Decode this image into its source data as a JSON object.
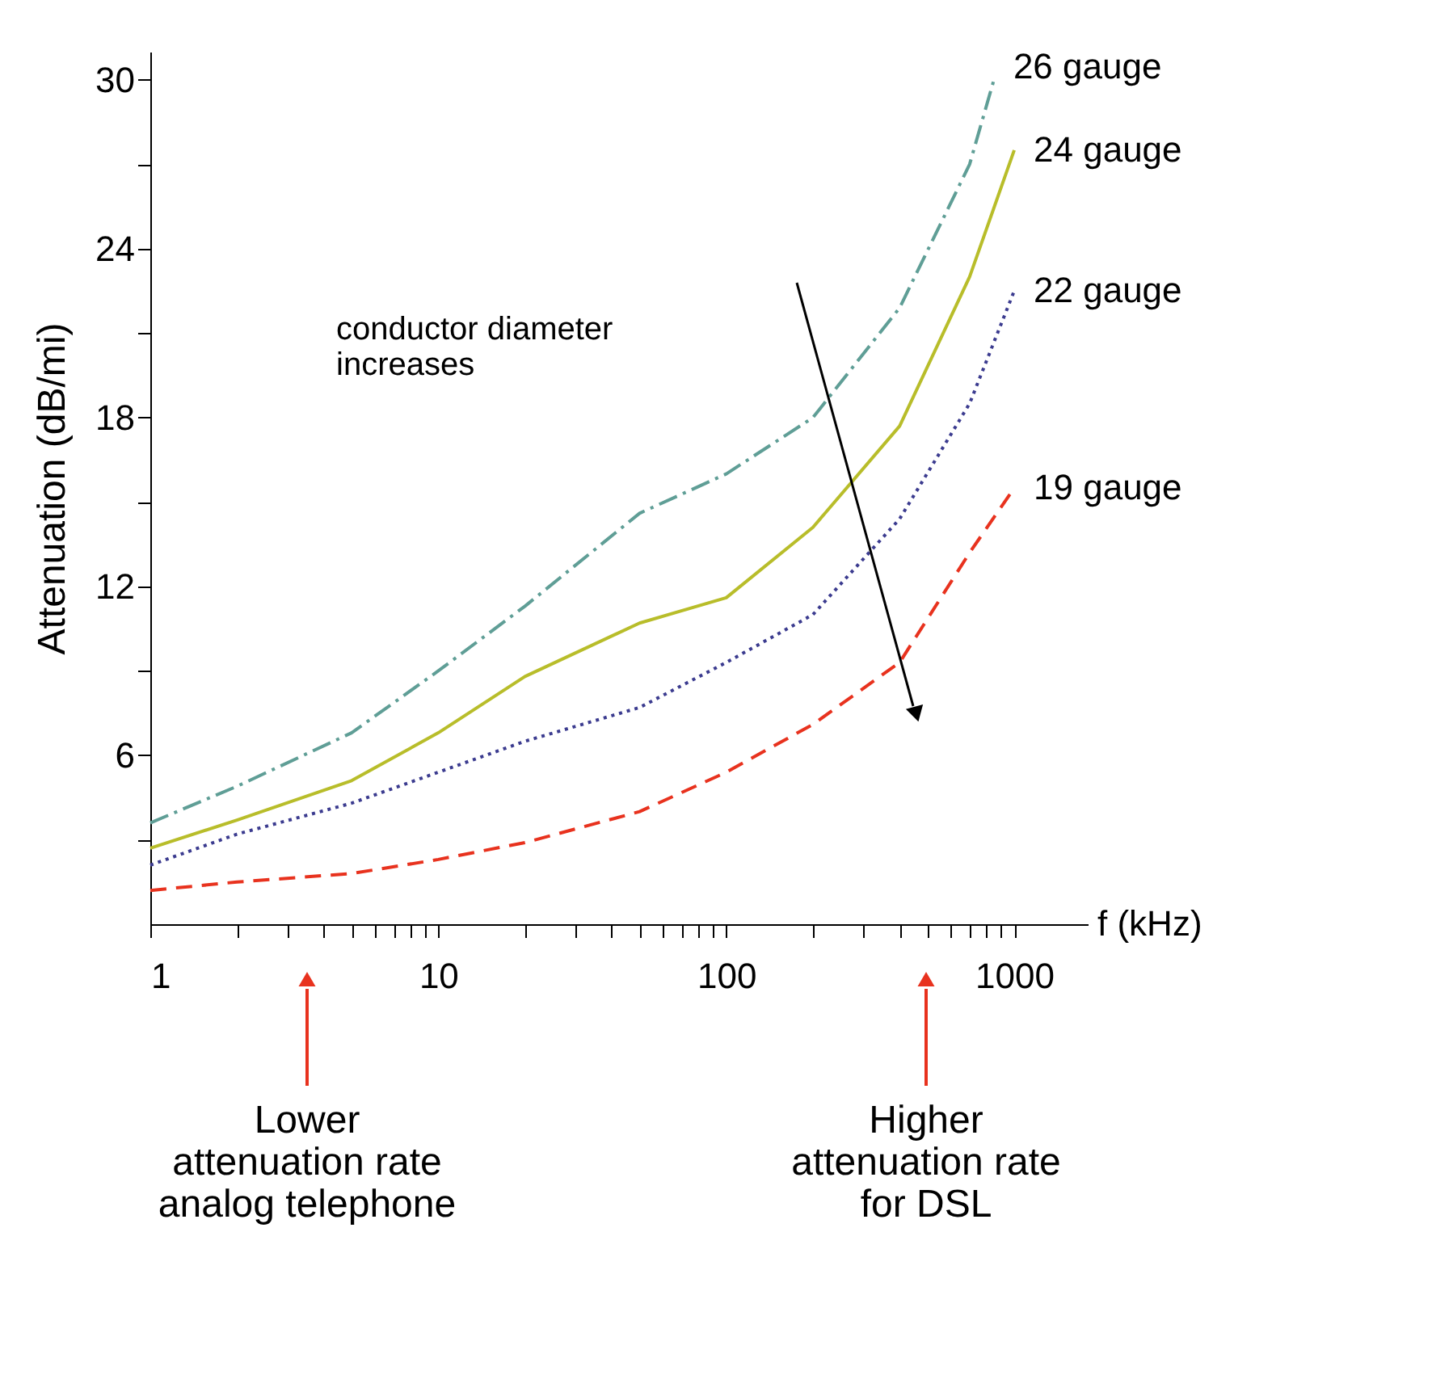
{
  "chart_data": {
    "type": "line",
    "xlabel": "f (kHz)",
    "ylabel": "Attenuation (dB/mi)",
    "log": "x",
    "xlim": [
      1,
      1800
    ],
    "ylim": [
      0,
      31
    ],
    "xticks": [
      1,
      {
        "value": 2,
        "label": null
      },
      {
        "value": 3,
        "label": null
      },
      {
        "value": 4,
        "label": null
      },
      {
        "value": 5,
        "label": null
      },
      {
        "value": 6,
        "label": null
      },
      {
        "value": 7,
        "label": null
      },
      {
        "value": 8,
        "label": null
      },
      {
        "value": 9,
        "label": null
      },
      10,
      {
        "value": 20,
        "label": null
      },
      {
        "value": 30,
        "label": null
      },
      {
        "value": 40,
        "label": null
      },
      {
        "value": 50,
        "label": null
      },
      {
        "value": 60,
        "label": null
      },
      {
        "value": 70,
        "label": null
      },
      {
        "value": 80,
        "label": null
      },
      {
        "value": 90,
        "label": null
      },
      100,
      {
        "value": 200,
        "label": null
      },
      {
        "value": 300,
        "label": null
      },
      {
        "value": 400,
        "label": null
      },
      {
        "value": 500,
        "label": null
      },
      {
        "value": 600,
        "label": null
      },
      {
        "value": 700,
        "label": null
      },
      {
        "value": 800,
        "label": null
      },
      {
        "value": 900,
        "label": null
      },
      1000
    ],
    "yticks": [
      {
        "value": 3,
        "label": null
      },
      6,
      {
        "value": 9,
        "label": null
      },
      12,
      {
        "value": 15,
        "label": null
      },
      18,
      {
        "value": 21,
        "label": null
      },
      24,
      {
        "value": 27,
        "label": null
      },
      30
    ],
    "x": [
      1,
      2,
      5,
      10,
      20,
      50,
      100,
      200,
      400,
      700,
      1000
    ],
    "series": [
      {
        "name": "26 gauge",
        "color": "#5f9e96",
        "line_style": "dashdot",
        "x": [
          1,
          2,
          5,
          10,
          20,
          50,
          100,
          200,
          400,
          700,
          850
        ],
        "values": [
          3.6,
          4.9,
          6.8,
          9.0,
          11.3,
          14.6,
          16.0,
          18.0,
          21.9,
          27.0,
          30.0
        ]
      },
      {
        "name": "24 gauge",
        "color": "#b8bd2a",
        "line_style": "solid",
        "values": [
          2.7,
          3.7,
          5.1,
          6.8,
          8.8,
          10.7,
          11.6,
          14.1,
          17.7,
          23.0,
          27.5
        ]
      },
      {
        "name": "22 gauge",
        "color": "#3b3b8f",
        "line_style": "dotted",
        "values": [
          2.1,
          3.2,
          4.3,
          5.4,
          6.5,
          7.7,
          9.3,
          11.0,
          14.4,
          18.5,
          22.5
        ]
      },
      {
        "name": "19 gauge",
        "color": "#e8321e",
        "line_style": "dashed",
        "values": [
          1.2,
          1.5,
          1.8,
          2.3,
          2.9,
          4.0,
          5.4,
          7.1,
          9.3,
          13.2,
          15.5
        ]
      }
    ],
    "grid": false,
    "marker": "none",
    "annotations": [
      "conductor diameter\nincreases",
      "Lower\nattenuation rate\nanalog telephone",
      "Higher\nattenuation rate\nfor DSL"
    ]
  }
}
